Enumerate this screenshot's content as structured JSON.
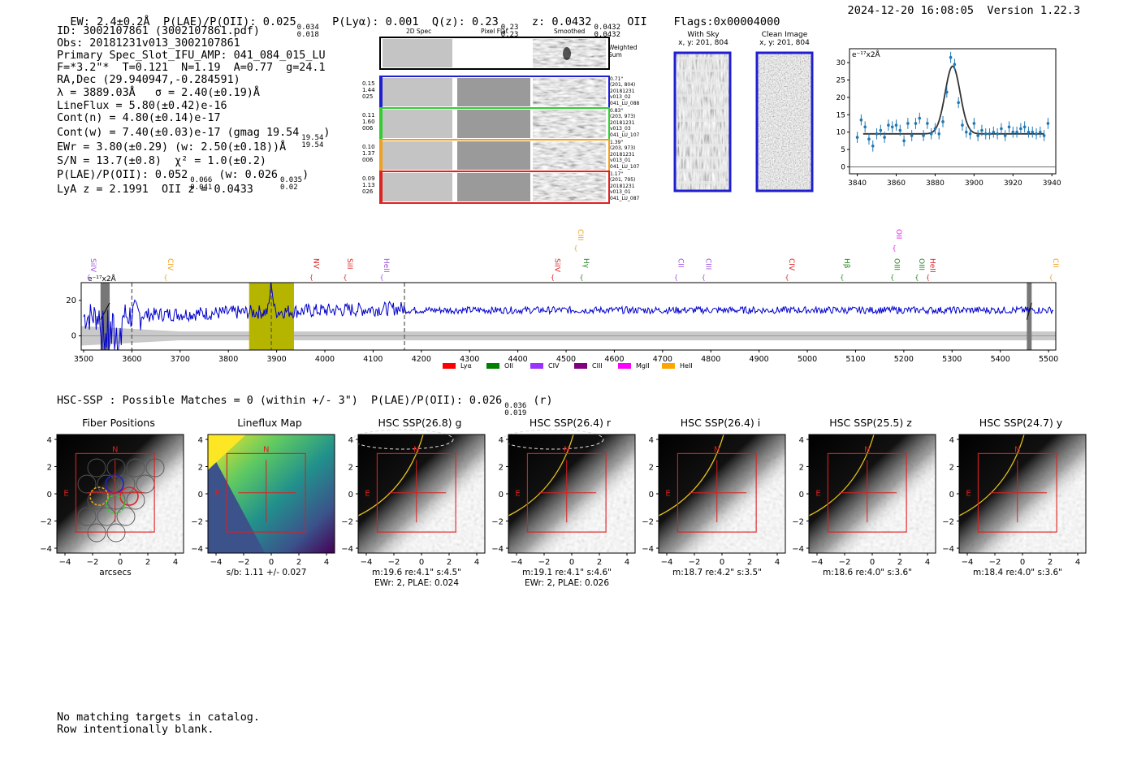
{
  "header": {
    "ew": "EW: 2.4±0.2Å",
    "plae": "P(LAE)/P(OII): 0.025",
    "plae_hi": "0.034",
    "plae_lo": "0.018",
    "plya": "P(Lyα): 0.001",
    "q": "Q(z): 0.23",
    "q_hi": "0.23",
    "q_lo": "0.23",
    "z": "z: 0.0432",
    "z_hi": "0.0432",
    "z_lo": "0.0432",
    "z_line": "OII",
    "flags": "Flags:0x00004000",
    "datetime": "2024-12-20 16:08:05",
    "version": "Version 1.22.3"
  },
  "info": {
    "id": "ID: 3002107861 (3002107861.pdf)",
    "obs": "Obs: 20181231v013_3002107861",
    "primary": "Primary Spec_Slot_IFU_AMP: 041_084_015_LU",
    "fparams": "F=*3.2\"*  T=0.121  N=1.19  A=0.77  g=24.1",
    "radec": "RA,Dec (29.940947,-0.284591)",
    "lambda": "λ = 3889.03Å   σ = 2.40(±0.19)Å",
    "lineflux": "LineFlux = 5.80(±0.42)e-16",
    "contn": "Cont(n) = 4.80(±0.14)e-17",
    "contw": "Cont(w) = 7.40(±0.03)e-17 (gmag 19.54",
    "contw_hi": "19.54",
    "contw_lo": "19.54",
    "ewr": "EWr = 3.80(±0.29) (w: 2.50(±0.18))Å",
    "sn": "S/N = 13.7(±0.8)  χ² = 1.0(±0.2)",
    "plae2": "P(LAE)/P(OII): 0.052",
    "plae2_hi": "0.066",
    "plae2_lo": "0.041",
    "plae2_w": "(w: 0.026",
    "plae2_w_hi": "0.035",
    "plae2_w_lo": "0.02",
    "lyaz": "LyA z = 2.1991  OII z = 0.0433"
  },
  "cutouts": {
    "col_2d": "2D Spec",
    "col_flat": "Pixel Flat",
    "col_smooth": "Smoothed",
    "weighted": "Weighted",
    "sum": "Sum",
    "rows": [
      {
        "left": [
          "0.15",
          "1.44",
          "025"
        ],
        "right": [
          "0.71\"",
          "(201, 804)",
          "20181231",
          "v013_02",
          "041_LU_088"
        ],
        "color": "#1f1fd0"
      },
      {
        "left": [
          "0.11",
          "1.60",
          "006"
        ],
        "right": [
          "0.83\"",
          "(203, 973)",
          "20181231",
          "v013_03",
          "041_LU_107"
        ],
        "color": "#33cc33"
      },
      {
        "left": [
          "0.10",
          "1.37",
          "006"
        ],
        "right": [
          "1.39\"",
          "(203, 973)",
          "20181231",
          "v013_01",
          "041_LU_107"
        ],
        "color": "#f0a020"
      },
      {
        "left": [
          "0.09",
          "1.13",
          "026"
        ],
        "right": [
          "1.17\"",
          "(201, 795)",
          "20181231",
          "v013_01",
          "041_LU_087"
        ],
        "color": "#dd2222"
      }
    ]
  },
  "sky": {
    "with_sky": "With Sky",
    "with_sky_xy": "x, y: 201, 804",
    "clean": "Clean Image",
    "clean_xy": "x, y: 201, 804"
  },
  "hsc_title": "HSC-SSP : Possible Matches = 0 (within +/- 3\")  P(LAE)/P(OII): 0.026",
  "hsc_plae_hi": "0.036",
  "hsc_plae_lo": "0.019",
  "hsc_plae_band": "(r)",
  "panels": [
    {
      "title": "Fiber Positions",
      "xlabel": "arcsecs",
      "xlabel2": ""
    },
    {
      "title": "Lineflux Map",
      "xlabel": "s/b: 1.11 +/- 0.027",
      "xlabel2": ""
    },
    {
      "title": "HSC SSP(26.8) g",
      "xlabel": "m:19.6  re:4.1\"  s:4.5\"",
      "xlabel2": "EWr: 2, PLAE: 0.024"
    },
    {
      "title": "HSC SSP(26.4) r",
      "xlabel": "m:19.1  re:4.1\"  s:4.6\"",
      "xlabel2": "EWr: 2, PLAE: 0.026"
    },
    {
      "title": "HSC SSP(26.4) i",
      "xlabel": "m:18.7  re:4.2\"  s:3.5\"",
      "xlabel2": ""
    },
    {
      "title": "HSC SSP(25.5) z",
      "xlabel": "m:18.6  re:4.0\"  s:3.6\"",
      "xlabel2": ""
    },
    {
      "title": "HSC SSP(24.7) y",
      "xlabel": "m:18.4  re:4.0\"  s:3.6\"",
      "xlabel2": ""
    }
  ],
  "panel_ticks": [
    "−4",
    "−2",
    "0",
    "2",
    "4"
  ],
  "panel_yticks": [
    "4",
    "2",
    "0",
    "−2",
    "−4"
  ],
  "compass_n": "N",
  "compass_e": "E",
  "footer": {
    "line1": "No matching targets in catalog.",
    "line2": "Row intentionally blank."
  },
  "chart_data": [
    {
      "type": "scatter",
      "title": "",
      "ylabel": "e⁻¹⁷x2Å",
      "xlim": [
        3836,
        3942
      ],
      "ylim": [
        -2,
        34
      ],
      "xticks": [
        3840,
        3860,
        3880,
        3900,
        3920,
        3940
      ],
      "yticks": [
        0,
        5,
        10,
        15,
        20,
        25,
        30
      ],
      "points": {
        "x": [
          3840,
          3842,
          3844,
          3846,
          3848,
          3850,
          3852,
          3854,
          3856,
          3858,
          3860,
          3862,
          3864,
          3866,
          3868,
          3870,
          3872,
          3874,
          3876,
          3878,
          3880,
          3882,
          3884,
          3886,
          3888,
          3890,
          3892,
          3894,
          3896,
          3898,
          3900,
          3902,
          3904,
          3906,
          3908,
          3910,
          3912,
          3914,
          3916,
          3918,
          3920,
          3922,
          3924,
          3926,
          3928,
          3930,
          3932,
          3934,
          3936,
          3938
        ],
        "y": [
          8.5,
          13.5,
          11.5,
          8,
          6,
          9.5,
          10.5,
          8.5,
          12,
          11.5,
          12,
          10.5,
          7.5,
          12.5,
          9,
          12.5,
          14,
          9,
          12.5,
          9.5,
          11,
          9.5,
          13,
          21.5,
          31.5,
          29.5,
          18.5,
          12,
          10,
          9.5,
          12.5,
          9,
          10.5,
          9.5,
          9.5,
          10,
          9.5,
          11,
          9,
          11.5,
          10,
          10,
          11,
          11.5,
          10,
          10,
          9.5,
          10,
          9,
          12.5
        ],
        "err": [
          1.6,
          1.6,
          1.6,
          1.6,
          1.6,
          1.6,
          1.6,
          1.6,
          1.6,
          1.6,
          1.6,
          1.6,
          1.6,
          1.6,
          1.6,
          1.6,
          1.6,
          1.6,
          1.6,
          1.6,
          1.6,
          1.6,
          1.6,
          1.6,
          1.6,
          1.6,
          1.6,
          1.6,
          1.6,
          1.6,
          1.6,
          1.6,
          1.6,
          1.6,
          1.6,
          1.6,
          1.6,
          1.6,
          1.6,
          1.6,
          1.6,
          1.6,
          1.6,
          1.6,
          1.6,
          1.6,
          1.6,
          1.6,
          1.6,
          1.6
        ]
      },
      "model": {
        "continuum": 9.5,
        "peak": 29,
        "center": 3889,
        "sigma": 2.4,
        "x_start": 3843,
        "x_end": 3936
      },
      "point_color": "#1f77b4",
      "model_color": "#333333"
    },
    {
      "type": "line",
      "title": "",
      "ylabel": "e⁻¹⁷x2Å",
      "xlim": [
        3495,
        5515
      ],
      "ylim": [
        -8,
        30
      ],
      "xticks": [
        3500,
        3600,
        3700,
        3800,
        3900,
        4000,
        4100,
        4200,
        4300,
        4400,
        4500,
        4600,
        4700,
        4800,
        4900,
        5000,
        5100,
        5200,
        5300,
        5400,
        5500
      ],
      "yticks": [
        0,
        20
      ],
      "series": [
        {
          "name": "flux",
          "color": "#0000cc",
          "noise_seed": 7,
          "level": 13,
          "rise": 4.5,
          "sn_low": 4,
          "sn_high": 2
        },
        {
          "name": "error",
          "color": "#aaaaaa",
          "level": 0,
          "band": 2.5
        }
      ],
      "highlight_region": {
        "x": [
          3843,
          3936
        ],
        "color": "#b5b500"
      },
      "masked_regions": [
        [
          3535,
          3554
        ],
        [
          5455,
          5465
        ]
      ],
      "dashed_lines": [
        3600,
        3889,
        4165
      ],
      "emission_lines": [
        {
          "label": "SiIV",
          "x": 3510,
          "color": "#a050e0",
          "row": 1
        },
        {
          "label": "CIV",
          "x": 3670,
          "color": "#f0a020",
          "row": 1
        },
        {
          "label": "NV",
          "x": 3972,
          "color": "#dd2222",
          "row": 1
        },
        {
          "label": "SiII",
          "x": 4042,
          "color": "#dd2222",
          "row": 1
        },
        {
          "label": "HeII",
          "x": 4118,
          "color": "#a050e0",
          "row": 1
        },
        {
          "label": "SiIV",
          "x": 4472,
          "color": "#dd2222",
          "row": 1
        },
        {
          "label": "CIII",
          "x": 4520,
          "color": "#f0a020",
          "row": 2
        },
        {
          "label": "Hγ",
          "x": 4532,
          "color": "#228822",
          "row": 1
        },
        {
          "label": "CII",
          "x": 4728,
          "color": "#a050e0",
          "row": 1
        },
        {
          "label": "CIII",
          "x": 4785,
          "color": "#a050e0",
          "row": 1
        },
        {
          "label": "CIV",
          "x": 4958,
          "color": "#dd2222",
          "row": 1
        },
        {
          "label": "Hβ",
          "x": 5072,
          "color": "#228822",
          "row": 1
        },
        {
          "label": "OIII",
          "x": 5176,
          "color": "#228822",
          "row": 1
        },
        {
          "label": "OII",
          "x": 5180,
          "color": "#dd22dd",
          "row": 2
        },
        {
          "label": "OIII",
          "x": 5227,
          "color": "#228822",
          "row": 1
        },
        {
          "label": "HeII",
          "x": 5250,
          "color": "#dd2222",
          "row": 1
        },
        {
          "label": "CII",
          "x": 5505,
          "color": "#f0a020",
          "row": 1
        }
      ],
      "legend": [
        {
          "label": "Lyα",
          "color": "#ff0000"
        },
        {
          "label": "OII",
          "color": "#008000"
        },
        {
          "label": "CIV",
          "color": "#9933ff"
        },
        {
          "label": "CIII",
          "color": "#800080"
        },
        {
          "label": "MgII",
          "color": "#ff00ff"
        },
        {
          "label": "HeII",
          "color": "#ffa500"
        }
      ]
    }
  ]
}
